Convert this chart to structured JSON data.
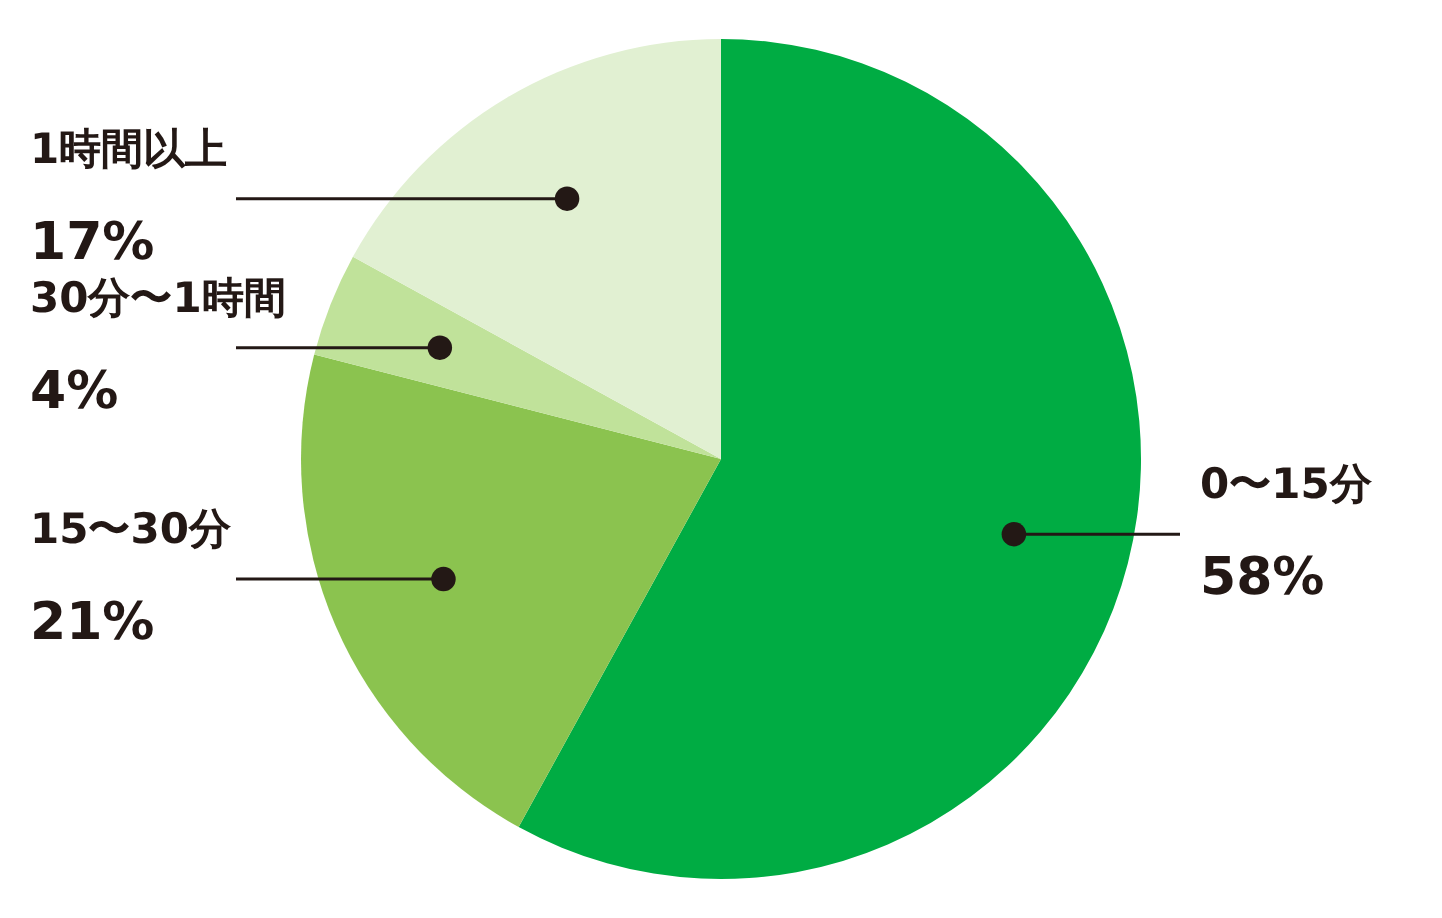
{
  "chart_data": {
    "type": "pie",
    "categories": [
      "0〜15分",
      "15〜30分",
      "30分〜1時間",
      "1時間以上"
    ],
    "values": [
      58,
      21,
      4,
      17
    ],
    "colors": [
      "#00ac43",
      "#8bc34f",
      "#c0e29a",
      "#e1f0d2"
    ],
    "value_labels": [
      "58%",
      "21%",
      "4%",
      "17%"
    ]
  }
}
